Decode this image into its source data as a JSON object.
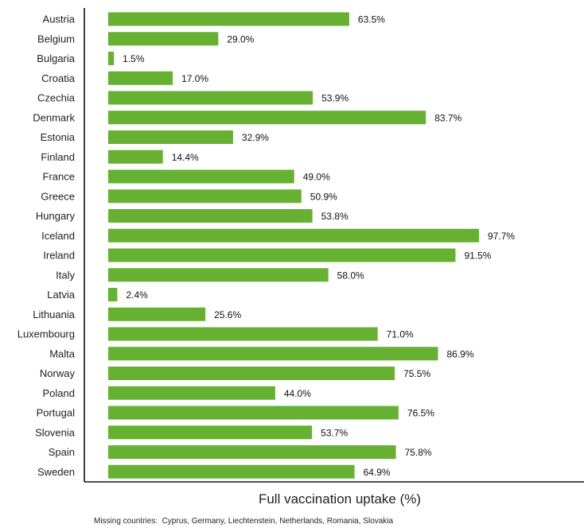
{
  "chart_data": {
    "type": "bar",
    "orientation": "horizontal",
    "categories": [
      "Austria",
      "Belgium",
      "Bulgaria",
      "Croatia",
      "Czechia",
      "Denmark",
      "Estonia",
      "Finland",
      "France",
      "Greece",
      "Hungary",
      "Iceland",
      "Ireland",
      "Italy",
      "Latvia",
      "Lithuania",
      "Luxembourg",
      "Malta",
      "Norway",
      "Poland",
      "Portugal",
      "Slovenia",
      "Spain",
      "Sweden"
    ],
    "values": [
      63.5,
      29.0,
      1.5,
      17.0,
      53.9,
      83.7,
      32.9,
      14.4,
      49.0,
      50.9,
      53.8,
      97.7,
      91.5,
      58.0,
      2.4,
      25.6,
      71.0,
      86.9,
      75.5,
      44.0,
      76.5,
      53.7,
      75.8,
      64.9
    ],
    "value_labels": [
      "63.5%",
      "29.0%",
      "1.5%",
      "17.0%",
      "53.9%",
      "83.7%",
      "32.9%",
      "14.4%",
      "49.0%",
      "50.9%",
      "53.8%",
      "97.7%",
      "91.5%",
      "58.0%",
      "2.4%",
      "25.6%",
      "71.0%",
      "86.9%",
      "75.5%",
      "44.0%",
      "76.5%",
      "53.7%",
      "75.8%",
      "64.9%"
    ],
    "xlabel": "Full vaccination uptake (%)",
    "ylabel": "",
    "xlim": [
      0,
      100
    ],
    "grid": false,
    "bar_color": "#66b032"
  },
  "footnote": "Missing countries:  Cyprus, Germany, Liechtenstein, Netherlands, Romania, Slovakia"
}
